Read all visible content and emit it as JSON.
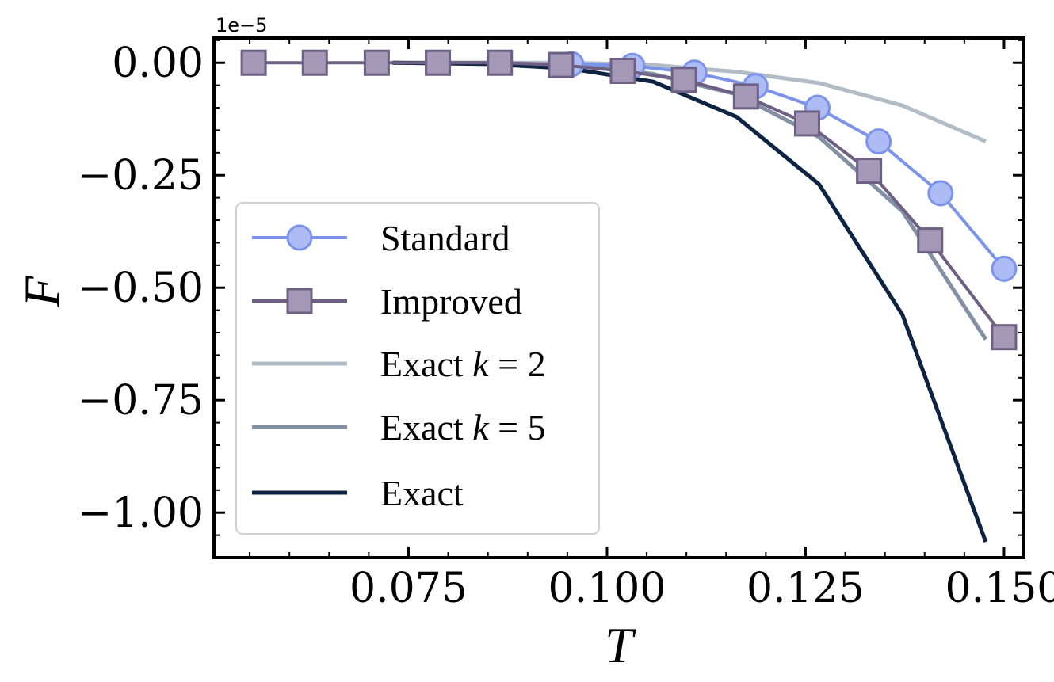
{
  "chart_data": {
    "type": "line",
    "title": "",
    "xlabel": "T",
    "ylabel": "F",
    "y_offset_label": "1e−5",
    "xlim": [
      0.0505,
      0.1525
    ],
    "ylim": [
      -1.1,
      0.055
    ],
    "grid": false,
    "legend_position": "center-left",
    "x_ticks": [
      {
        "value": 0.075,
        "label": "0.075"
      },
      {
        "value": 0.1,
        "label": "0.100"
      },
      {
        "value": 0.125,
        "label": "0.125"
      },
      {
        "value": 0.15,
        "label": "0.150"
      }
    ],
    "y_ticks": [
      {
        "value": 0.0,
        "label": "0.00"
      },
      {
        "value": -0.25,
        "label": "−0.25"
      },
      {
        "value": -0.5,
        "label": "−0.50"
      },
      {
        "value": -0.75,
        "label": "−0.75"
      },
      {
        "value": -1.0,
        "label": "−1.00"
      }
    ],
    "series": [
      {
        "name": "Exact k=2",
        "legend_main": "Exact ",
        "legend_var": "k",
        "legend_rest": " = 2",
        "color": "#b2bcc7",
        "marker": "none",
        "line_width": 5,
        "x": [
          0.073,
          0.0853,
          0.0953,
          0.1058,
          0.1163,
          0.1267,
          0.1372,
          0.1477
        ],
        "y": [
          0.0,
          0.0,
          0.0,
          -0.005,
          -0.02,
          -0.045,
          -0.095,
          -0.175
        ]
      },
      {
        "name": "Exact k=5",
        "legend_main": "Exact ",
        "legend_var": "k",
        "legend_rest": " = 5",
        "color": "#8290a4",
        "marker": "none",
        "line_width": 5,
        "x": [
          0.073,
          0.0853,
          0.0953,
          0.1058,
          0.1163,
          0.1267,
          0.1372,
          0.1477
        ],
        "y": [
          0.0,
          0.0,
          -0.005,
          -0.025,
          -0.07,
          -0.165,
          -0.33,
          -0.615
        ]
      },
      {
        "name": "Exact",
        "legend_main": "Exact",
        "legend_var": "",
        "legend_rest": "",
        "color": "#0d2344",
        "marker": "none",
        "line_width": 5,
        "x": [
          0.073,
          0.0853,
          0.0953,
          0.1058,
          0.1163,
          0.1267,
          0.1372,
          0.1477
        ],
        "y": [
          0.0,
          -0.003,
          -0.013,
          -0.042,
          -0.12,
          -0.27,
          -0.56,
          -1.065
        ]
      },
      {
        "name": "Standard",
        "legend_main": "Standard",
        "legend_var": "",
        "legend_rest": "",
        "color": "#7c93ec",
        "marker_fill": "#aebcf5",
        "marker": "circle",
        "line_width": 4,
        "x": [
          0.0955,
          0.1032,
          0.111,
          0.1187,
          0.1265,
          0.1342,
          0.142,
          0.15
        ],
        "y": [
          -0.003,
          -0.007,
          -0.022,
          -0.052,
          -0.1,
          -0.175,
          -0.29,
          -0.458
        ]
      },
      {
        "name": "Improved",
        "legend_main": "Improved",
        "legend_var": "",
        "legend_rest": "",
        "color": "#6e5f84",
        "marker_fill": "#a498b7",
        "marker": "square",
        "line_width": 4,
        "x": [
          0.0555,
          0.0632,
          0.071,
          0.0787,
          0.0865,
          0.0942,
          0.102,
          0.1097,
          0.1175,
          0.1252,
          0.133,
          0.1407,
          0.15
        ],
        "y": [
          0.0,
          0.0,
          0.0,
          0.0,
          0.0,
          -0.005,
          -0.018,
          -0.038,
          -0.075,
          -0.135,
          -0.24,
          -0.395,
          -0.61
        ]
      }
    ],
    "legend_order": [
      "Standard",
      "Improved",
      "Exact k=2",
      "Exact k=5",
      "Exact"
    ]
  }
}
